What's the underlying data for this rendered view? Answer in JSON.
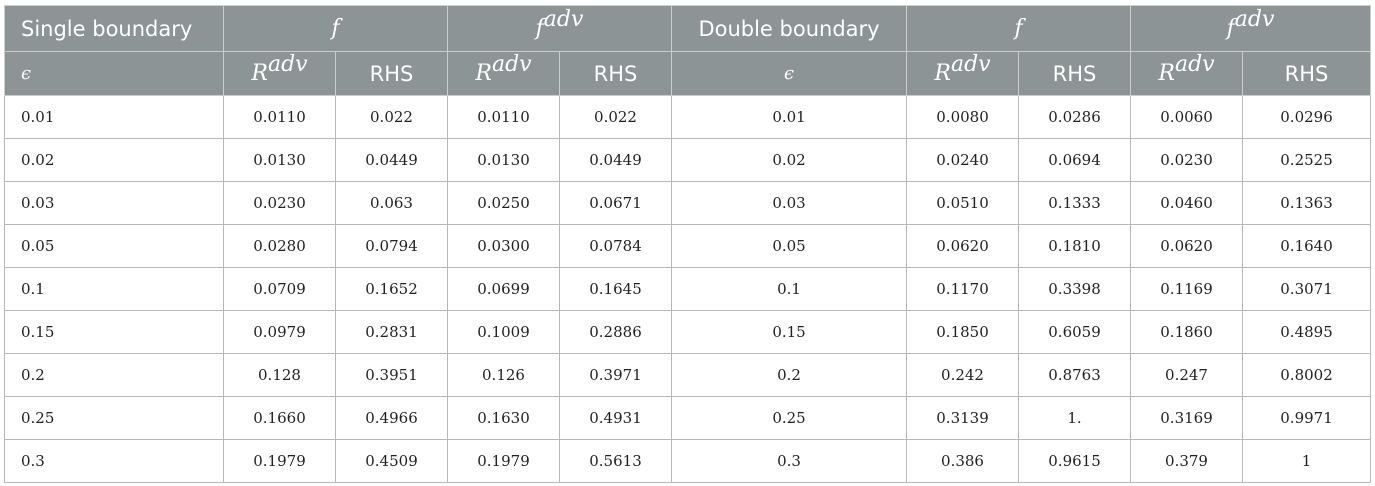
{
  "header": {
    "single_label": "Single boundary",
    "double_label": "Double boundary",
    "f_label": "f",
    "fadv_base": "f",
    "fadv_sup": "adv",
    "epsilon_label": "ϵ",
    "r_base": "R",
    "r_sup": "adv",
    "rhs_label": "RHS"
  },
  "rows": [
    {
      "eps1": "0.01",
      "s_f_r": "0.0110",
      "s_f_rhs": "0.022",
      "s_fa_r": "0.0110",
      "s_fa_rhs": "0.022",
      "eps2": "0.01",
      "d_f_r": "0.0080",
      "d_f_rhs": "0.0286",
      "d_fa_r": "0.0060",
      "d_fa_rhs": "0.0296"
    },
    {
      "eps1": "0.02",
      "s_f_r": "0.0130",
      "s_f_rhs": "0.0449",
      "s_fa_r": "0.0130",
      "s_fa_rhs": "0.0449",
      "eps2": "0.02",
      "d_f_r": "0.0240",
      "d_f_rhs": "0.0694",
      "d_fa_r": "0.0230",
      "d_fa_rhs": "0.2525"
    },
    {
      "eps1": "0.03",
      "s_f_r": "0.0230",
      "s_f_rhs": "0.063",
      "s_fa_r": "0.0250",
      "s_fa_rhs": "0.0671",
      "eps2": "0.03",
      "d_f_r": "0.0510",
      "d_f_rhs": "0.1333",
      "d_fa_r": "0.0460",
      "d_fa_rhs": "0.1363"
    },
    {
      "eps1": "0.05",
      "s_f_r": "0.0280",
      "s_f_rhs": "0.0794",
      "s_fa_r": "0.0300",
      "s_fa_rhs": "0.0784",
      "eps2": "0.05",
      "d_f_r": "0.0620",
      "d_f_rhs": "0.1810",
      "d_fa_r": "0.0620",
      "d_fa_rhs": "0.1640"
    },
    {
      "eps1": "0.1",
      "s_f_r": "0.0709",
      "s_f_rhs": "0.1652",
      "s_fa_r": "0.0699",
      "s_fa_rhs": "0.1645",
      "eps2": "0.1",
      "d_f_r": "0.1170",
      "d_f_rhs": "0.3398",
      "d_fa_r": "0.1169",
      "d_fa_rhs": "0.3071"
    },
    {
      "eps1": "0.15",
      "s_f_r": "0.0979",
      "s_f_rhs": "0.2831",
      "s_fa_r": "0.1009",
      "s_fa_rhs": "0.2886",
      "eps2": "0.15",
      "d_f_r": "0.1850",
      "d_f_rhs": "0.6059",
      "d_fa_r": "0.1860",
      "d_fa_rhs": "0.4895"
    },
    {
      "eps1": "0.2",
      "s_f_r": "0.128",
      "s_f_rhs": "0.3951",
      "s_fa_r": "0.126",
      "s_fa_rhs": "0.3971",
      "eps2": "0.2",
      "d_f_r": "0.242",
      "d_f_rhs": "0.8763",
      "d_fa_r": "0.247",
      "d_fa_rhs": "0.8002"
    },
    {
      "eps1": "0.25",
      "s_f_r": "0.1660",
      "s_f_rhs": "0.4966",
      "s_fa_r": "0.1630",
      "s_fa_rhs": "0.4931",
      "eps2": "0.25",
      "d_f_r": "0.3139",
      "d_f_rhs": "1.",
      "d_fa_r": "0.3169",
      "d_fa_rhs": "0.9971"
    },
    {
      "eps1": "0.3",
      "s_f_r": "0.1979",
      "s_f_rhs": "0.4509",
      "s_fa_r": "0.1979",
      "s_fa_rhs": "0.5613",
      "eps2": "0.3",
      "d_f_r": "0.386",
      "d_f_rhs": "0.9615",
      "d_fa_r": "0.379",
      "d_fa_rhs": "1"
    }
  ]
}
